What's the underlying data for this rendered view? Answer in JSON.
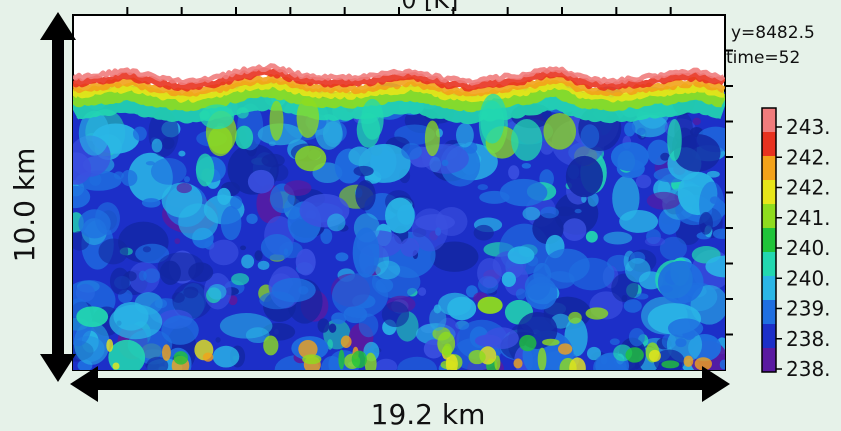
{
  "chart_data": {
    "type": "heatmap",
    "title": "",
    "title_partial": "θ [K]",
    "annotations": [
      "y=8482.5",
      "time=52"
    ],
    "xlabel": "19.2 km",
    "ylabel": "10.0 km",
    "colorbar": {
      "tick_labels": [
        "243.",
        "242.",
        "242.",
        "241.",
        "240.",
        "240.",
        "239.",
        "238.",
        "238."
      ],
      "colors": [
        "#f07c7c",
        "#e8321f",
        "#f2a21a",
        "#e8e61a",
        "#8fdc1e",
        "#20c43a",
        "#22d8b0",
        "#2ab6e6",
        "#1f6fe0",
        "#1c2fc8",
        "#5a1aa0"
      ]
    },
    "field": {
      "cloud_top_height_km": [
        8.0,
        8.1,
        8.2,
        8.0,
        7.9,
        8.0,
        8.2,
        8.3,
        8.1,
        8.0,
        8.0,
        8.1,
        8.2,
        8.0,
        7.9,
        8.0,
        8.1,
        8.3,
        8.0,
        7.9,
        8.0,
        8.1,
        8.2,
        8.0
      ],
      "value_scale": [
        "dark_blue",
        "blue",
        "light_blue",
        "cyan",
        "green",
        "yellow",
        "orange",
        "red",
        "pink"
      ],
      "note_values": "K"
    }
  }
}
